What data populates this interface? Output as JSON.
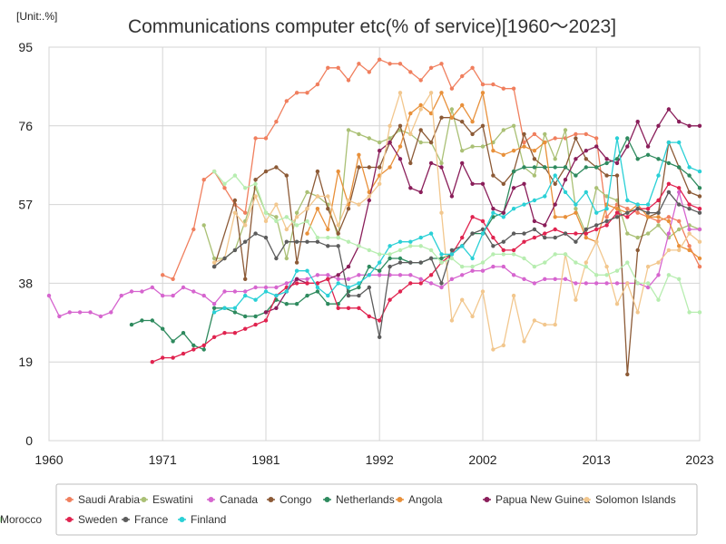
{
  "chart_data": {
    "type": "line",
    "title": "Communications computer etc(% of service)[1960～2023]",
    "unit_label": "[Unit:.%]",
    "xlabel": "",
    "ylabel": "",
    "xlim": [
      1960,
      2023
    ],
    "ylim": [
      0,
      95
    ],
    "x_ticks": [
      1960,
      1971,
      1981,
      1992,
      2002,
      2013,
      2023
    ],
    "y_ticks": [
      0,
      19,
      38,
      57,
      76,
      95
    ],
    "grid": true,
    "legend_position": "bottom",
    "series": [
      {
        "name": "Saudi Arabia",
        "color": "#f07f5e",
        "x": [
          1971,
          1972,
          1974,
          1975,
          1976,
          1977,
          1978,
          1979,
          1980,
          1981,
          1982,
          1983,
          1984,
          1985,
          1986,
          1987,
          1988,
          1989,
          1990,
          1991,
          1992,
          1993,
          1994,
          1995,
          1996,
          1997,
          1998,
          1999,
          2000,
          2001,
          2002,
          2003,
          2004,
          2005,
          2006,
          2007,
          2008,
          2009,
          2010,
          2011,
          2012,
          2013,
          2014,
          2015,
          2016,
          2017,
          2018,
          2019,
          2020,
          2021,
          2022,
          2023
        ],
        "y": [
          40,
          39,
          51,
          63,
          65,
          61,
          57,
          55,
          73,
          73,
          77,
          82,
          84,
          84,
          86,
          90,
          90,
          87,
          91,
          89,
          92,
          91,
          91,
          89,
          87,
          90,
          91,
          85,
          88,
          90,
          86,
          86,
          85,
          85,
          72,
          74,
          72,
          73,
          73,
          74,
          74,
          73,
          54,
          57,
          56,
          55,
          54,
          53,
          54,
          53,
          47,
          42
        ]
      },
      {
        "name": "Eswatini",
        "color": "#aac075",
        "x": [
          1975,
          1976,
          1977,
          1978,
          1979,
          1980,
          1981,
          1982,
          1983,
          1984,
          1985,
          1986,
          1987,
          1988,
          1989,
          1990,
          1991,
          1992,
          1993,
          1994,
          1995,
          1996,
          1997,
          1998,
          1999,
          2000,
          2001,
          2002,
          2003,
          2004,
          2005,
          2006,
          2007,
          2008,
          2009,
          2010,
          2011,
          2012,
          2013,
          2014,
          2015,
          2016,
          2017,
          2018,
          2019,
          2020,
          2021,
          2022,
          2023
        ],
        "y": [
          52,
          44,
          44,
          46,
          53,
          61,
          55,
          54,
          44,
          55,
          60,
          59,
          57,
          49,
          75,
          74,
          73,
          72,
          73,
          75,
          74,
          72,
          72,
          67,
          80,
          70,
          71,
          71,
          72,
          75,
          76,
          66,
          64,
          74,
          68,
          75,
          56,
          50,
          61,
          59,
          58,
          50,
          49,
          50,
          52,
          49,
          51,
          52,
          51
        ]
      },
      {
        "name": "Canada",
        "color": "#d665cf",
        "x": [
          1960,
          1961,
          1962,
          1963,
          1964,
          1965,
          1966,
          1967,
          1968,
          1969,
          1970,
          1971,
          1972,
          1973,
          1974,
          1975,
          1976,
          1977,
          1978,
          1979,
          1980,
          1981,
          1982,
          1983,
          1984,
          1985,
          1986,
          1987,
          1988,
          1989,
          1990,
          1991,
          1992,
          1993,
          1994,
          1995,
          1996,
          1997,
          1998,
          1999,
          2000,
          2001,
          2002,
          2003,
          2004,
          2005,
          2006,
          2007,
          2008,
          2009,
          2010,
          2011,
          2012,
          2013,
          2014,
          2015,
          2016,
          2017,
          2018,
          2019,
          2020,
          2021,
          2022,
          2023
        ],
        "y": [
          35,
          30,
          31,
          31,
          31,
          30,
          31,
          35,
          36,
          36,
          37,
          35,
          35,
          37,
          36,
          35,
          33,
          36,
          36,
          36,
          37,
          37,
          37,
          38,
          39,
          39,
          40,
          40,
          39,
          39,
          40,
          40,
          40,
          40,
          40,
          40,
          39,
          38,
          37,
          39,
          40,
          41,
          41,
          42,
          42,
          40,
          39,
          38,
          39,
          39,
          39,
          38,
          38,
          38,
          38,
          38,
          38,
          38,
          37,
          40,
          50,
          60,
          51,
          51
        ]
      },
      {
        "name": "Congo",
        "color": "#8c5a36",
        "x": [
          1976,
          1978,
          1979,
          1980,
          1981,
          1982,
          1983,
          1984,
          1985,
          1986,
          1987,
          1988,
          1989,
          1990,
          1991,
          1992,
          1993,
          1994,
          1995,
          1996,
          1997,
          1998,
          1999,
          2000,
          2001,
          2002,
          2003,
          2004,
          2005,
          2006,
          2007,
          2008,
          2009,
          2010,
          2011,
          2012,
          2013,
          2014,
          2015,
          2016,
          2017,
          2018,
          2019,
          2020,
          2021,
          2022,
          2023
        ],
        "y": [
          42,
          58,
          39,
          63,
          65,
          66,
          64,
          43,
          56,
          65,
          56,
          50,
          56,
          66,
          66,
          66,
          72,
          76,
          67,
          75,
          72,
          78,
          78,
          77,
          74,
          76,
          64,
          62,
          65,
          74,
          68,
          66,
          62,
          66,
          73,
          68,
          66,
          64,
          64,
          16,
          46,
          54,
          55,
          72,
          66,
          60,
          59
        ]
      },
      {
        "name": "Netherlands",
        "color": "#2e8a5e",
        "x": [
          1968,
          1969,
          1970,
          1971,
          1972,
          1973,
          1974,
          1975,
          1976,
          1977,
          1978,
          1979,
          1980,
          1981,
          1982,
          1983,
          1984,
          1985,
          1986,
          1987,
          1988,
          1989,
          1990,
          1991,
          1992,
          1993,
          1994,
          1995,
          1996,
          1997,
          1998,
          1999,
          2000,
          2001,
          2002,
          2003,
          2004,
          2005,
          2006,
          2007,
          2008,
          2009,
          2010,
          2011,
          2012,
          2013,
          2014,
          2015,
          2016,
          2017,
          2018,
          2019,
          2020,
          2021,
          2022,
          2023
        ],
        "y": [
          28,
          29,
          29,
          27,
          24,
          26,
          23,
          22,
          32,
          32,
          31,
          30,
          30,
          31,
          34,
          33,
          33,
          35,
          36,
          33,
          33,
          36,
          37,
          42,
          41,
          44,
          44,
          43,
          43,
          44,
          44,
          45,
          47,
          50,
          50,
          54,
          55,
          65,
          66,
          66,
          66,
          66,
          66,
          64,
          66,
          66,
          67,
          68,
          73,
          68,
          69,
          68,
          67,
          66,
          64,
          61
        ]
      },
      {
        "name": "Angola",
        "color": "#e8903a",
        "x": [
          1985,
          1986,
          1987,
          1988,
          1989,
          1990,
          1991,
          1992,
          1993,
          1994,
          1995,
          1996,
          1997,
          1998,
          1999,
          2000,
          2001,
          2002,
          2003,
          2004,
          2005,
          2006,
          2007,
          2008,
          2009,
          2010,
          2011,
          2012,
          2013,
          2014,
          2015,
          2016,
          2017,
          2018,
          2019,
          2020,
          2021,
          2022,
          2023
        ],
        "y": [
          50,
          56,
          51,
          65,
          57,
          69,
          60,
          64,
          66,
          71,
          79,
          81,
          79,
          84,
          78,
          81,
          77,
          84,
          70,
          69,
          70,
          71,
          70,
          72,
          54,
          54,
          55,
          49,
          48,
          57,
          56,
          55,
          57,
          54,
          54,
          53,
          47,
          46,
          44
        ]
      },
      {
        "name": "Papua New Guinea",
        "color": "#8a1e5a",
        "x": [
          1981,
          1982,
          1983,
          1984,
          1985,
          1986,
          1987,
          1988,
          1989,
          1990,
          1991,
          1992,
          1993,
          1994,
          1995,
          1996,
          1997,
          1998,
          1999,
          2000,
          2001,
          2002,
          2003,
          2004,
          2005,
          2006,
          2007,
          2008,
          2009,
          2010,
          2011,
          2012,
          2013,
          2014,
          2015,
          2016,
          2017,
          2018,
          2019,
          2020,
          2021,
          2022,
          2023
        ],
        "y": [
          31,
          32,
          36,
          39,
          38,
          38,
          39,
          40,
          42,
          47,
          58,
          70,
          72,
          68,
          61,
          60,
          67,
          66,
          59,
          67,
          62,
          62,
          56,
          55,
          61,
          62,
          53,
          52,
          57,
          63,
          68,
          70,
          71,
          68,
          67,
          71,
          77,
          71,
          76,
          80,
          77,
          76,
          76
        ]
      },
      {
        "name": "Solomon Islands",
        "color": "#f2c78e",
        "x": [
          1976,
          1977,
          1978,
          1979,
          1980,
          1981,
          1982,
          1983,
          1984,
          1985,
          1986,
          1987,
          1988,
          1989,
          1990,
          1991,
          1992,
          1993,
          1994,
          1995,
          1996,
          1997,
          1998,
          1999,
          2000,
          2001,
          2002,
          2003,
          2004,
          2005,
          2006,
          2007,
          2008,
          2009,
          2010,
          2011,
          2012,
          2013,
          2014,
          2015,
          2016,
          2017,
          2018,
          2019,
          2020,
          2021,
          2022,
          2023
        ],
        "y": [
          43,
          44,
          55,
          52,
          59,
          53,
          57,
          51,
          54,
          56,
          59,
          59,
          52,
          58,
          57,
          59,
          62,
          76,
          84,
          74,
          80,
          84,
          55,
          29,
          34,
          30,
          36,
          22,
          23,
          35,
          24,
          29,
          28,
          28,
          45,
          34,
          43,
          48,
          42,
          33,
          38,
          31,
          42,
          43,
          46,
          46,
          50,
          48
        ]
      },
      {
        "name": "Sweden",
        "color": "#e0234f",
        "x": [
          1970,
          1971,
          1972,
          1973,
          1974,
          1975,
          1976,
          1977,
          1978,
          1979,
          1980,
          1981,
          1982,
          1983,
          1984,
          1985,
          1986,
          1987,
          1988,
          1989,
          1990,
          1991,
          1992,
          1993,
          1994,
          1995,
          1996,
          1997,
          1998,
          1999,
          2000,
          2001,
          2002,
          2003,
          2004,
          2005,
          2006,
          2007,
          2008,
          2009,
          2010,
          2011,
          2012,
          2013,
          2014,
          2015,
          2016,
          2017,
          2018,
          2019,
          2020,
          2021,
          2022,
          2023
        ],
        "y": [
          19,
          20,
          20,
          21,
          22,
          23,
          25,
          26,
          26,
          27,
          28,
          29,
          35,
          37,
          38,
          38,
          38,
          39,
          32,
          32,
          32,
          30,
          29,
          34,
          36,
          38,
          38,
          40,
          43,
          45,
          49,
          54,
          53,
          49,
          46,
          46,
          48,
          49,
          50,
          51,
          50,
          50,
          50,
          51,
          52,
          55,
          54,
          56,
          56,
          58,
          62,
          61,
          57,
          56
        ]
      },
      {
        "name": "France",
        "color": "#5c5c5c",
        "x": [
          1976,
          1977,
          1978,
          1979,
          1980,
          1981,
          1982,
          1983,
          1984,
          1985,
          1986,
          1987,
          1988,
          1989,
          1990,
          1991,
          1992,
          1993,
          1994,
          1995,
          1996,
          1997,
          1998,
          1999,
          2000,
          2001,
          2002,
          2003,
          2004,
          2005,
          2006,
          2007,
          2008,
          2009,
          2010,
          2011,
          2012,
          2013,
          2014,
          2015,
          2016,
          2017,
          2018,
          2019,
          2020,
          2021,
          2022,
          2023
        ],
        "y": [
          42,
          44,
          46,
          48,
          50,
          49,
          44,
          48,
          48,
          48,
          48,
          47,
          47,
          35,
          35,
          37,
          25,
          42,
          43,
          43,
          43,
          44,
          38,
          46,
          47,
          50,
          51,
          47,
          48,
          50,
          50,
          51,
          49,
          49,
          50,
          48,
          51,
          52,
          53,
          54,
          55,
          56,
          55,
          55,
          60,
          57,
          56,
          55
        ]
      },
      {
        "name": "Finland",
        "color": "#2ad0d6",
        "x": [
          1976,
          1977,
          1978,
          1979,
          1980,
          1981,
          1982,
          1983,
          1984,
          1985,
          1986,
          1987,
          1988,
          1989,
          1990,
          1991,
          1992,
          1993,
          1994,
          1995,
          1996,
          1997,
          1998,
          1999,
          2000,
          2001,
          2002,
          2003,
          2004,
          2005,
          2006,
          2007,
          2008,
          2009,
          2010,
          2011,
          2012,
          2013,
          2014,
          2015,
          2016,
          2017,
          2018,
          2019,
          2020,
          2021,
          2022,
          2023
        ],
        "y": [
          31,
          32,
          32,
          35,
          34,
          36,
          35,
          36,
          41,
          41,
          37,
          35,
          38,
          37,
          38,
          40,
          43,
          47,
          48,
          48,
          49,
          50,
          45,
          45,
          47,
          44,
          50,
          55,
          54,
          56,
          57,
          58,
          59,
          64,
          60,
          57,
          60,
          55,
          56,
          73,
          58,
          57,
          57,
          64,
          72,
          72,
          66,
          65
        ]
      },
      {
        "name": "Morocco",
        "color": "#b7edb0",
        "x": [
          1976,
          1977,
          1978,
          1979,
          1980,
          1981,
          1982,
          1983,
          1984,
          1985,
          1986,
          1987,
          1988,
          1989,
          1990,
          1991,
          1992,
          1993,
          1994,
          1995,
          1996,
          1997,
          1998,
          1999,
          2000,
          2001,
          2002,
          2003,
          2004,
          2005,
          2006,
          2007,
          2008,
          2009,
          2010,
          2011,
          2012,
          2013,
          2014,
          2015,
          2016,
          2017,
          2018,
          2019,
          2020,
          2021,
          2022,
          2023
        ],
        "y": [
          65,
          62,
          64,
          61,
          62,
          55,
          53,
          54,
          52,
          53,
          49,
          49,
          49,
          48,
          47,
          46,
          45,
          45,
          46,
          47,
          47,
          46,
          43,
          44,
          42,
          42,
          43,
          45,
          45,
          45,
          44,
          42,
          43,
          45,
          45,
          43,
          42,
          40,
          40,
          41,
          43,
          38,
          38,
          34,
          40,
          39,
          31,
          31
        ]
      }
    ]
  }
}
